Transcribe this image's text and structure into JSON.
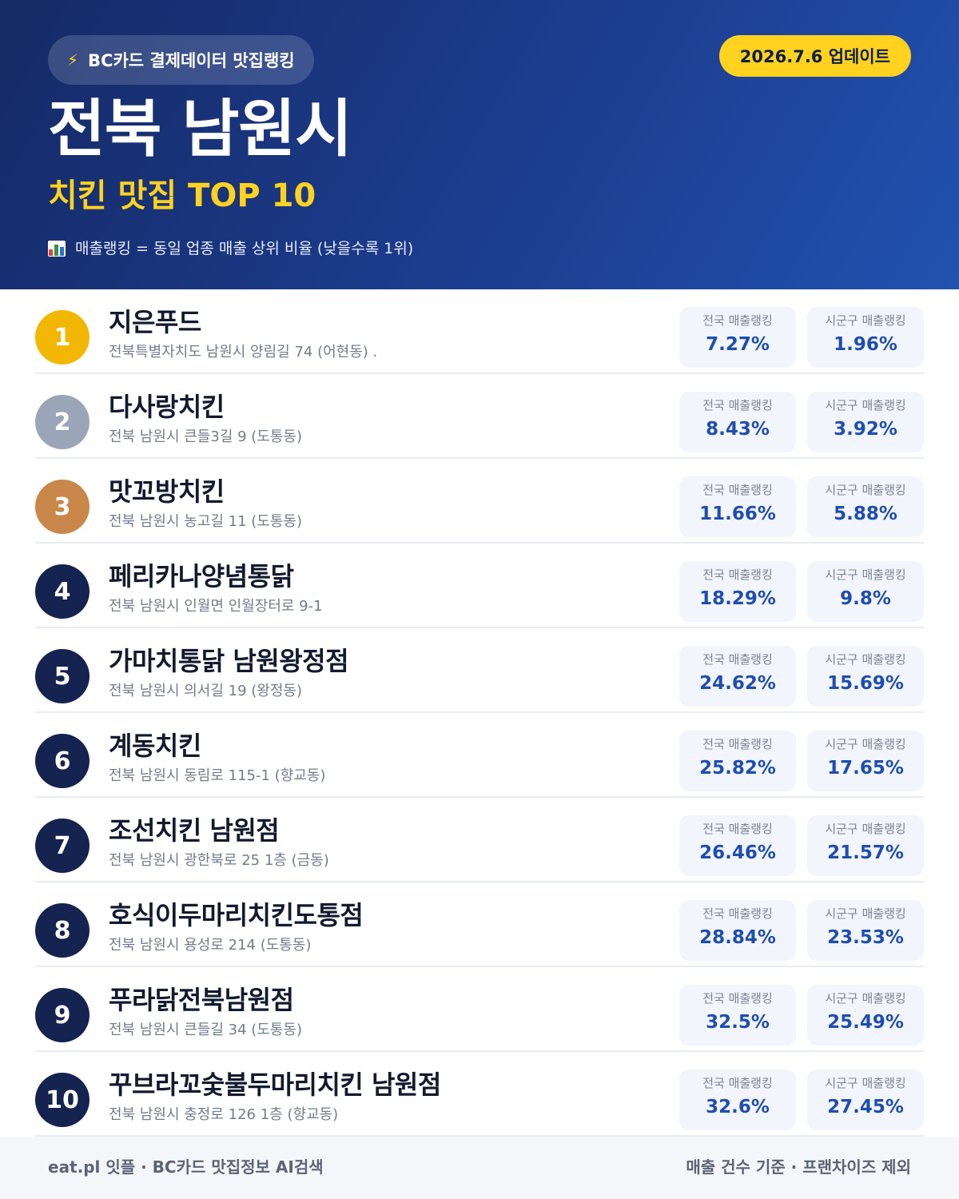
{
  "header": {
    "source_label": "BC카드 결제데이터 맛집랭킹",
    "bolt_icon": "lightning-bolt-icon",
    "update_label": "2026.7.6 업데이트",
    "title": "전북 남원시",
    "subtitle": "치킨 맛집 TOP 10",
    "note_icon": "bar-chart-icon",
    "note": "매출랭킹 = 동일 업종 매출 상위 비율 (낮을수록 1위)"
  },
  "colors": {
    "header_bg": "#1c3d8f",
    "accent_yellow": "#ffd21f",
    "gold": "#f2b705",
    "silver": "#9aa5b8",
    "bronze": "#c9874a",
    "navy": "#14234f",
    "value_blue": "#1f4db0"
  },
  "stat_labels": {
    "national": "전국 매출랭킹",
    "regional": "시군구 매출랭킹"
  },
  "restaurants": [
    {
      "rank": "1",
      "name": "지은푸드",
      "address": "전북특별자치도 남원시 양림길 74 (어현동) .",
      "national": "7.27%",
      "regional": "1.96%"
    },
    {
      "rank": "2",
      "name": "다사랑치킨",
      "address": "전북 남원시 큰들3길 9 (도통동)",
      "national": "8.43%",
      "regional": "3.92%"
    },
    {
      "rank": "3",
      "name": "맛꼬방치킨",
      "address": "전북 남원시 농고길 11 (도통동)",
      "national": "11.66%",
      "regional": "5.88%"
    },
    {
      "rank": "4",
      "name": "페리카나양념통닭",
      "address": "전북 남원시 인월면 인월장터로 9-1",
      "national": "18.29%",
      "regional": "9.8%"
    },
    {
      "rank": "5",
      "name": "가마치통닭 남원왕정점",
      "address": "전북 남원시 의서길 19 (왕정동)",
      "national": "24.62%",
      "regional": "15.69%"
    },
    {
      "rank": "6",
      "name": "계동치킨",
      "address": "전북 남원시 동림로 115-1 (향교동)",
      "national": "25.82%",
      "regional": "17.65%"
    },
    {
      "rank": "7",
      "name": "조선치킨 남원점",
      "address": "전북 남원시 광한북로 25 1층 (금동)",
      "national": "26.46%",
      "regional": "21.57%"
    },
    {
      "rank": "8",
      "name": "호식이두마리치킨도통점",
      "address": "전북 남원시 용성로 214 (도통동)",
      "national": "28.84%",
      "regional": "23.53%"
    },
    {
      "rank": "9",
      "name": "푸라닭전북남원점",
      "address": "전북 남원시 큰들길 34 (도통동)",
      "national": "32.5%",
      "regional": "25.49%"
    },
    {
      "rank": "10",
      "name": "꾸브라꼬숯불두마리치킨 남원점",
      "address": "전북 남원시 충정로 126 1층 (향교동)",
      "national": "32.6%",
      "regional": "27.45%"
    }
  ],
  "footer": {
    "left": "eat.pl 잇플 · BC카드 맛집정보 AI검색",
    "right": "매출 건수 기준 · 프랜차이즈 제외"
  }
}
